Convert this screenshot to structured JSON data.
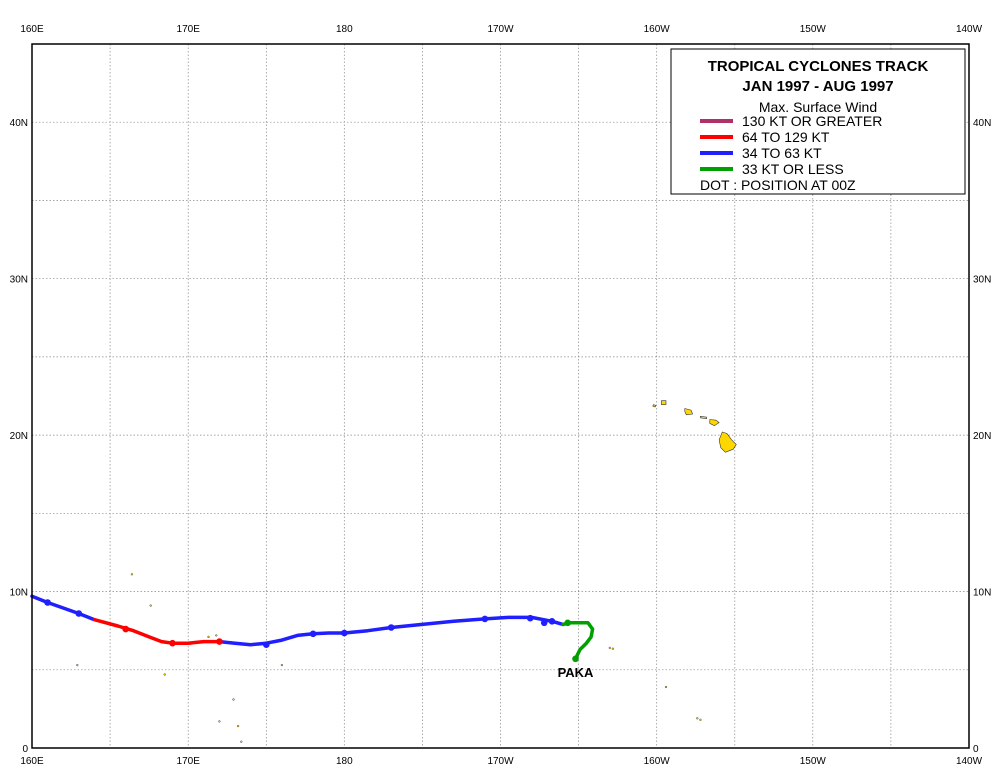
{
  "legend": {
    "title_line1": "TROPICAL  CYCLONES  TRACK",
    "title_line2": "JAN 1997  -  AUG 1997",
    "subtitle": "Max. Surface Wind",
    "items": [
      {
        "label": "130 KT OR GREATER",
        "color": "#b0306a"
      },
      {
        "label": "64 TO 129 KT",
        "color": "#ff0000"
      },
      {
        "label": "34 TO 63 KT",
        "color": "#1f1fff"
      },
      {
        "label": "33 KT OR LESS",
        "color": "#00a000"
      }
    ],
    "dot_note": "DOT : POSITION AT 00Z"
  },
  "axes": {
    "lon_labels": [
      "160E",
      "170E",
      "180",
      "170W",
      "160W",
      "150W",
      "140W"
    ],
    "lat_labels": [
      "0",
      "10N",
      "20N",
      "30N",
      "40N"
    ]
  },
  "map_extent": {
    "lon_min": 160,
    "lon_max": 220,
    "lat_min": 0,
    "lat_max": 45
  },
  "land_color": "#ffd700",
  "storms": [
    {
      "name": "PAKA",
      "segments": [
        {
          "intensity": "34 TO 63 KT",
          "color": "#1f1fff",
          "points": [
            [
              160.0,
              9.7
            ],
            [
              161.0,
              9.3
            ],
            [
              163.0,
              8.6
            ],
            [
              164.0,
              8.2
            ]
          ]
        },
        {
          "intensity": "64 TO 129 KT",
          "color": "#ff0000",
          "points": [
            [
              164.0,
              8.2
            ],
            [
              165.5,
              7.8
            ],
            [
              166.5,
              7.5
            ],
            [
              167.5,
              7.1
            ],
            [
              168.3,
              6.8
            ],
            [
              169.0,
              6.7
            ],
            [
              170.0,
              6.7
            ],
            [
              170.5,
              6.75
            ],
            [
              171.0,
              6.8
            ],
            [
              172.0,
              6.8
            ]
          ]
        },
        {
          "intensity": "34 TO 63 KT",
          "color": "#1f1fff",
          "points": [
            [
              172.0,
              6.8
            ],
            [
              173.0,
              6.7
            ],
            [
              174.0,
              6.6
            ],
            [
              175.0,
              6.7
            ],
            [
              176.0,
              6.9
            ],
            [
              177.0,
              7.2
            ],
            [
              178.0,
              7.3
            ],
            [
              179.0,
              7.35
            ],
            [
              180.0,
              7.35
            ],
            [
              181.5,
              7.5
            ],
            [
              183.0,
              7.7
            ],
            [
              185.0,
              7.9
            ],
            [
              187.0,
              8.1
            ],
            [
              189.0,
              8.25
            ],
            [
              190.5,
              8.35
            ],
            [
              192.0,
              8.35
            ],
            [
              193.3,
              8.1
            ],
            [
              194.0,
              7.9
            ]
          ]
        },
        {
          "intensity": "33 KT OR LESS",
          "color": "#00a000",
          "points": [
            [
              194.0,
              7.9
            ],
            [
              194.5,
              8.0
            ],
            [
              195.0,
              8.0
            ],
            [
              195.6,
              8.0
            ],
            [
              195.9,
              7.6
            ],
            [
              195.8,
              7.1
            ],
            [
              195.5,
              6.7
            ],
            [
              195.1,
              6.3
            ],
            [
              194.9,
              5.9
            ],
            [
              194.8,
              5.7
            ]
          ]
        }
      ],
      "dots": [
        [
          161.0,
          9.3
        ],
        [
          163.0,
          8.6
        ],
        [
          166.0,
          7.6
        ],
        [
          169.0,
          6.7
        ],
        [
          172.0,
          6.8
        ],
        [
          175.0,
          6.6
        ],
        [
          178.0,
          7.3
        ],
        [
          180.0,
          7.35
        ],
        [
          183.0,
          7.7
        ],
        [
          189.0,
          8.25
        ],
        [
          191.9,
          8.3
        ],
        [
          192.8,
          8.0
        ],
        [
          193.3,
          8.1
        ],
        [
          194.3,
          8.0
        ],
        [
          194.8,
          5.7
        ]
      ]
    }
  ]
}
